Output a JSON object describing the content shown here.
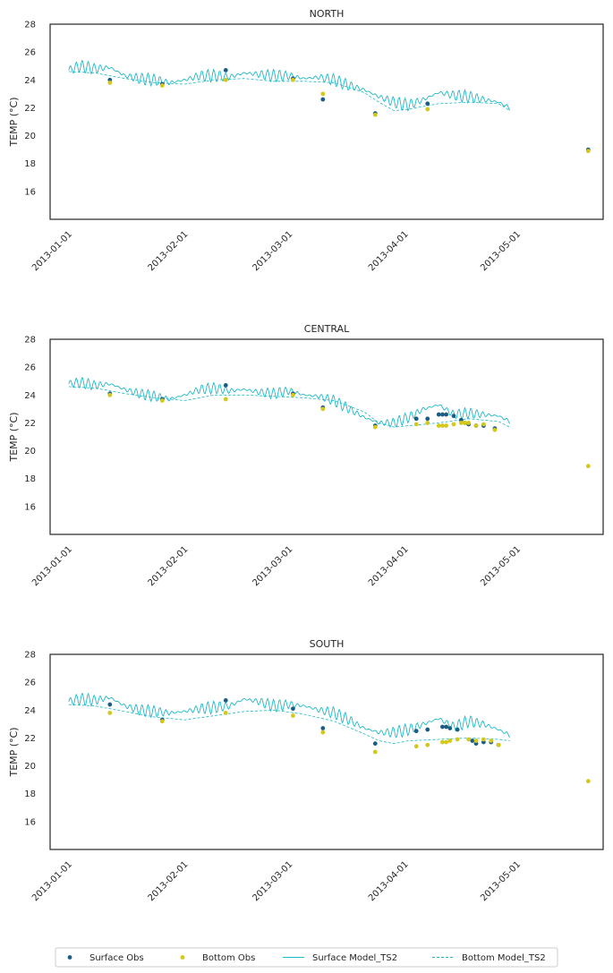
{
  "figure": {
    "legend": {
      "placement": "bottom-center",
      "entries": [
        "Surface Obs",
        "Bottom Obs",
        "Surface Model_TS2",
        "Bottom Model_TS2"
      ]
    }
  },
  "colors": {
    "surface_obs": "#1b5e85",
    "bottom_obs": "#d4c81a",
    "model": "#1fb8c8",
    "axes": "#262626"
  },
  "chart_data": [
    {
      "type": "line",
      "title": "NORTH",
      "xlabel": "",
      "ylabel": "TEMP (°C)",
      "xlim": [
        "2012-12-27",
        "2013-05-24"
      ],
      "ylim": [
        14,
        28
      ],
      "yticks": [
        16,
        18,
        20,
        22,
        24,
        26,
        28
      ],
      "xticks": [
        "2013-01-01",
        "2013-02-01",
        "2013-03-01",
        "2013-04-01",
        "2013-05-01"
      ],
      "grid": false,
      "legend": "bottom-center",
      "model_surface": {
        "name": "Surface Model_TS2",
        "x": [
          "2013-01-01",
          "2013-01-04",
          "2013-01-08",
          "2013-01-12",
          "2013-01-16",
          "2013-01-20",
          "2013-01-24",
          "2013-01-28",
          "2013-02-01",
          "2013-02-05",
          "2013-02-09",
          "2013-02-13",
          "2013-02-17",
          "2013-02-21",
          "2013-02-25",
          "2013-03-01",
          "2013-03-05",
          "2013-03-09",
          "2013-03-13",
          "2013-03-17",
          "2013-03-21",
          "2013-03-25",
          "2013-03-29",
          "2013-04-02",
          "2013-04-06",
          "2013-04-10",
          "2013-04-14",
          "2013-04-18",
          "2013-04-22",
          "2013-04-26",
          "2013-04-29"
        ],
        "y": [
          24.7,
          25.0,
          24.8,
          24.9,
          24.3,
          24.1,
          24.0,
          23.8,
          24.0,
          24.3,
          24.3,
          24.2,
          24.5,
          24.4,
          24.3,
          24.3,
          24.1,
          24.2,
          24.0,
          23.6,
          23.3,
          22.8,
          22.4,
          22.2,
          22.6,
          23.1,
          22.9,
          22.8,
          22.6,
          22.4,
          22.0
        ],
        "amplitude": 0.45
      },
      "model_bottom": {
        "name": "Bottom Model_TS2",
        "x": [
          "2013-01-01",
          "2013-01-08",
          "2013-01-16",
          "2013-01-24",
          "2013-02-01",
          "2013-02-09",
          "2013-02-17",
          "2013-02-25",
          "2013-03-05",
          "2013-03-13",
          "2013-03-21",
          "2013-03-25",
          "2013-03-29",
          "2013-04-02",
          "2013-04-10",
          "2013-04-18",
          "2013-04-26",
          "2013-04-29"
        ],
        "y": [
          24.6,
          24.5,
          24.1,
          23.8,
          23.7,
          24.0,
          24.1,
          23.9,
          23.9,
          23.8,
          23.1,
          22.4,
          21.8,
          21.9,
          22.3,
          22.4,
          22.3,
          21.8
        ]
      },
      "surface_obs": {
        "name": "Surface Obs",
        "x": [
          "2013-01-12",
          "2013-01-26",
          "2013-02-12",
          "2013-03-02",
          "2013-03-10",
          "2013-03-24",
          "2013-04-07",
          "2013-05-20"
        ],
        "y": [
          24.0,
          23.7,
          24.7,
          24.1,
          22.6,
          21.6,
          22.3,
          19.0
        ]
      },
      "bottom_obs": {
        "name": "Bottom Obs",
        "x": [
          "2013-01-12",
          "2013-01-26",
          "2013-02-12",
          "2013-03-02",
          "2013-03-10",
          "2013-03-24",
          "2013-04-07",
          "2013-05-20"
        ],
        "y": [
          23.8,
          23.6,
          24.0,
          24.0,
          23.0,
          21.5,
          21.9,
          18.9
        ]
      }
    },
    {
      "type": "line",
      "title": "CENTRAL",
      "xlabel": "",
      "ylabel": "TEMP (°C)",
      "xlim": [
        "2012-12-27",
        "2013-05-24"
      ],
      "ylim": [
        14,
        28
      ],
      "yticks": [
        16,
        18,
        20,
        22,
        24,
        26,
        28
      ],
      "xticks": [
        "2013-01-01",
        "2013-02-01",
        "2013-03-01",
        "2013-04-01",
        "2013-05-01"
      ],
      "grid": false,
      "legend": "bottom-center",
      "model_surface": {
        "name": "Surface Model_TS2",
        "x": [
          "2013-01-01",
          "2013-01-04",
          "2013-01-08",
          "2013-01-12",
          "2013-01-16",
          "2013-01-20",
          "2013-01-24",
          "2013-01-28",
          "2013-02-01",
          "2013-02-05",
          "2013-02-09",
          "2013-02-13",
          "2013-02-17",
          "2013-02-21",
          "2013-02-25",
          "2013-03-01",
          "2013-03-05",
          "2013-03-09",
          "2013-03-13",
          "2013-03-17",
          "2013-03-21",
          "2013-03-25",
          "2013-03-29",
          "2013-04-02",
          "2013-04-06",
          "2013-04-10",
          "2013-04-14",
          "2013-04-18",
          "2013-04-22",
          "2013-04-26",
          "2013-04-29"
        ],
        "y": [
          24.8,
          24.9,
          24.7,
          24.8,
          24.4,
          24.1,
          23.9,
          23.7,
          24.0,
          24.4,
          24.5,
          24.3,
          24.4,
          24.2,
          24.1,
          24.3,
          24.0,
          23.9,
          23.6,
          23.0,
          22.4,
          22.0,
          22.0,
          22.4,
          23.0,
          23.3,
          22.6,
          22.7,
          22.6,
          22.5,
          22.1
        ],
        "amplitude": 0.4
      },
      "model_bottom": {
        "name": "Bottom Model_TS2",
        "x": [
          "2013-01-01",
          "2013-01-08",
          "2013-01-16",
          "2013-01-24",
          "2013-02-01",
          "2013-02-09",
          "2013-02-17",
          "2013-02-25",
          "2013-03-05",
          "2013-03-13",
          "2013-03-21",
          "2013-03-25",
          "2013-03-29",
          "2013-04-02",
          "2013-04-10",
          "2013-04-18",
          "2013-04-26",
          "2013-04-29"
        ],
        "y": [
          24.6,
          24.5,
          24.1,
          23.8,
          23.6,
          24.0,
          24.0,
          23.9,
          23.8,
          23.6,
          22.8,
          22.0,
          21.7,
          21.8,
          22.0,
          22.3,
          22.1,
          21.7
        ]
      },
      "surface_obs": {
        "name": "Surface Obs",
        "x": [
          "2013-01-12",
          "2013-01-26",
          "2013-02-12",
          "2013-03-02",
          "2013-03-10",
          "2013-03-24",
          "2013-04-04",
          "2013-04-07",
          "2013-04-10",
          "2013-04-11",
          "2013-04-12",
          "2013-04-14",
          "2013-04-16",
          "2013-04-17",
          "2013-04-18",
          "2013-04-20",
          "2013-04-22",
          "2013-04-25"
        ],
        "y": [
          24.1,
          23.7,
          24.7,
          24.1,
          23.1,
          21.8,
          22.3,
          22.3,
          22.6,
          22.6,
          22.6,
          22.5,
          22.2,
          22.0,
          21.9,
          21.8,
          21.8,
          21.6
        ]
      },
      "bottom_obs": {
        "name": "Bottom Obs",
        "x": [
          "2013-01-12",
          "2013-01-26",
          "2013-02-12",
          "2013-03-02",
          "2013-03-10",
          "2013-03-24",
          "2013-04-04",
          "2013-04-07",
          "2013-04-10",
          "2013-04-11",
          "2013-04-12",
          "2013-04-14",
          "2013-04-16",
          "2013-04-17",
          "2013-04-18",
          "2013-04-20",
          "2013-04-22",
          "2013-04-25",
          "2013-05-20"
        ],
        "y": [
          24.0,
          23.6,
          23.7,
          24.0,
          23.0,
          21.7,
          21.9,
          22.0,
          21.8,
          21.8,
          21.8,
          21.9,
          22.0,
          22.0,
          22.0,
          21.8,
          21.9,
          21.5,
          18.9
        ]
      }
    },
    {
      "type": "line",
      "title": "SOUTH",
      "xlabel": "",
      "ylabel": "TEMP (°C)",
      "xlim": [
        "2012-12-27",
        "2013-05-24"
      ],
      "ylim": [
        14,
        28
      ],
      "yticks": [
        16,
        18,
        20,
        22,
        24,
        26,
        28
      ],
      "xticks": [
        "2013-01-01",
        "2013-02-01",
        "2013-03-01",
        "2013-04-01",
        "2013-05-01"
      ],
      "grid": false,
      "legend": "bottom-center",
      "model_surface": {
        "name": "Surface Model_TS2",
        "x": [
          "2013-01-01",
          "2013-01-04",
          "2013-01-08",
          "2013-01-12",
          "2013-01-16",
          "2013-01-20",
          "2013-01-24",
          "2013-01-28",
          "2013-02-01",
          "2013-02-05",
          "2013-02-09",
          "2013-02-13",
          "2013-02-17",
          "2013-02-21",
          "2013-02-25",
          "2013-03-01",
          "2013-03-05",
          "2013-03-09",
          "2013-03-13",
          "2013-03-17",
          "2013-03-21",
          "2013-03-25",
          "2013-03-29",
          "2013-04-02",
          "2013-04-06",
          "2013-04-10",
          "2013-04-14",
          "2013-04-18",
          "2013-04-22",
          "2013-04-26",
          "2013-04-29"
        ],
        "y": [
          24.6,
          24.8,
          24.7,
          24.9,
          24.3,
          24.0,
          23.9,
          23.8,
          23.9,
          24.1,
          24.2,
          24.3,
          24.8,
          24.6,
          24.3,
          24.4,
          24.3,
          24.0,
          23.8,
          23.3,
          22.7,
          22.4,
          22.4,
          22.6,
          23.0,
          23.4,
          22.8,
          23.2,
          23.0,
          22.6,
          22.2
        ],
        "amplitude": 0.45
      },
      "model_bottom": {
        "name": "Bottom Model_TS2",
        "x": [
          "2013-01-01",
          "2013-01-08",
          "2013-01-16",
          "2013-01-24",
          "2013-02-01",
          "2013-02-09",
          "2013-02-17",
          "2013-02-25",
          "2013-03-05",
          "2013-03-13",
          "2013-03-21",
          "2013-03-25",
          "2013-03-29",
          "2013-04-02",
          "2013-04-10",
          "2013-04-18",
          "2013-04-26",
          "2013-04-29"
        ],
        "y": [
          24.4,
          24.3,
          23.9,
          23.5,
          23.3,
          23.6,
          23.9,
          24.0,
          23.7,
          23.2,
          22.3,
          21.8,
          21.6,
          21.8,
          21.9,
          22.0,
          21.9,
          21.8
        ]
      },
      "surface_obs": {
        "name": "Surface Obs",
        "x": [
          "2013-01-12",
          "2013-01-26",
          "2013-02-12",
          "2013-03-02",
          "2013-03-10",
          "2013-03-24",
          "2013-04-04",
          "2013-04-07",
          "2013-04-11",
          "2013-04-12",
          "2013-04-13",
          "2013-04-15",
          "2013-04-19",
          "2013-04-20",
          "2013-04-22",
          "2013-04-24",
          "2013-04-26"
        ],
        "y": [
          24.4,
          23.3,
          24.7,
          24.1,
          22.7,
          21.6,
          22.5,
          22.6,
          22.8,
          22.8,
          22.7,
          22.6,
          21.8,
          21.6,
          21.7,
          21.7,
          21.5
        ]
      },
      "bottom_obs": {
        "name": "Bottom Obs",
        "x": [
          "2013-01-12",
          "2013-01-26",
          "2013-02-12",
          "2013-03-02",
          "2013-03-10",
          "2013-03-24",
          "2013-04-04",
          "2013-04-07",
          "2013-04-11",
          "2013-04-12",
          "2013-04-13",
          "2013-04-15",
          "2013-04-18",
          "2013-04-20",
          "2013-04-22",
          "2013-04-24",
          "2013-04-26",
          "2013-05-20"
        ],
        "y": [
          23.8,
          23.2,
          23.8,
          23.6,
          22.4,
          21.0,
          21.4,
          21.5,
          21.7,
          21.7,
          21.8,
          21.9,
          21.9,
          21.8,
          21.9,
          21.8,
          21.5,
          18.9
        ]
      }
    }
  ]
}
